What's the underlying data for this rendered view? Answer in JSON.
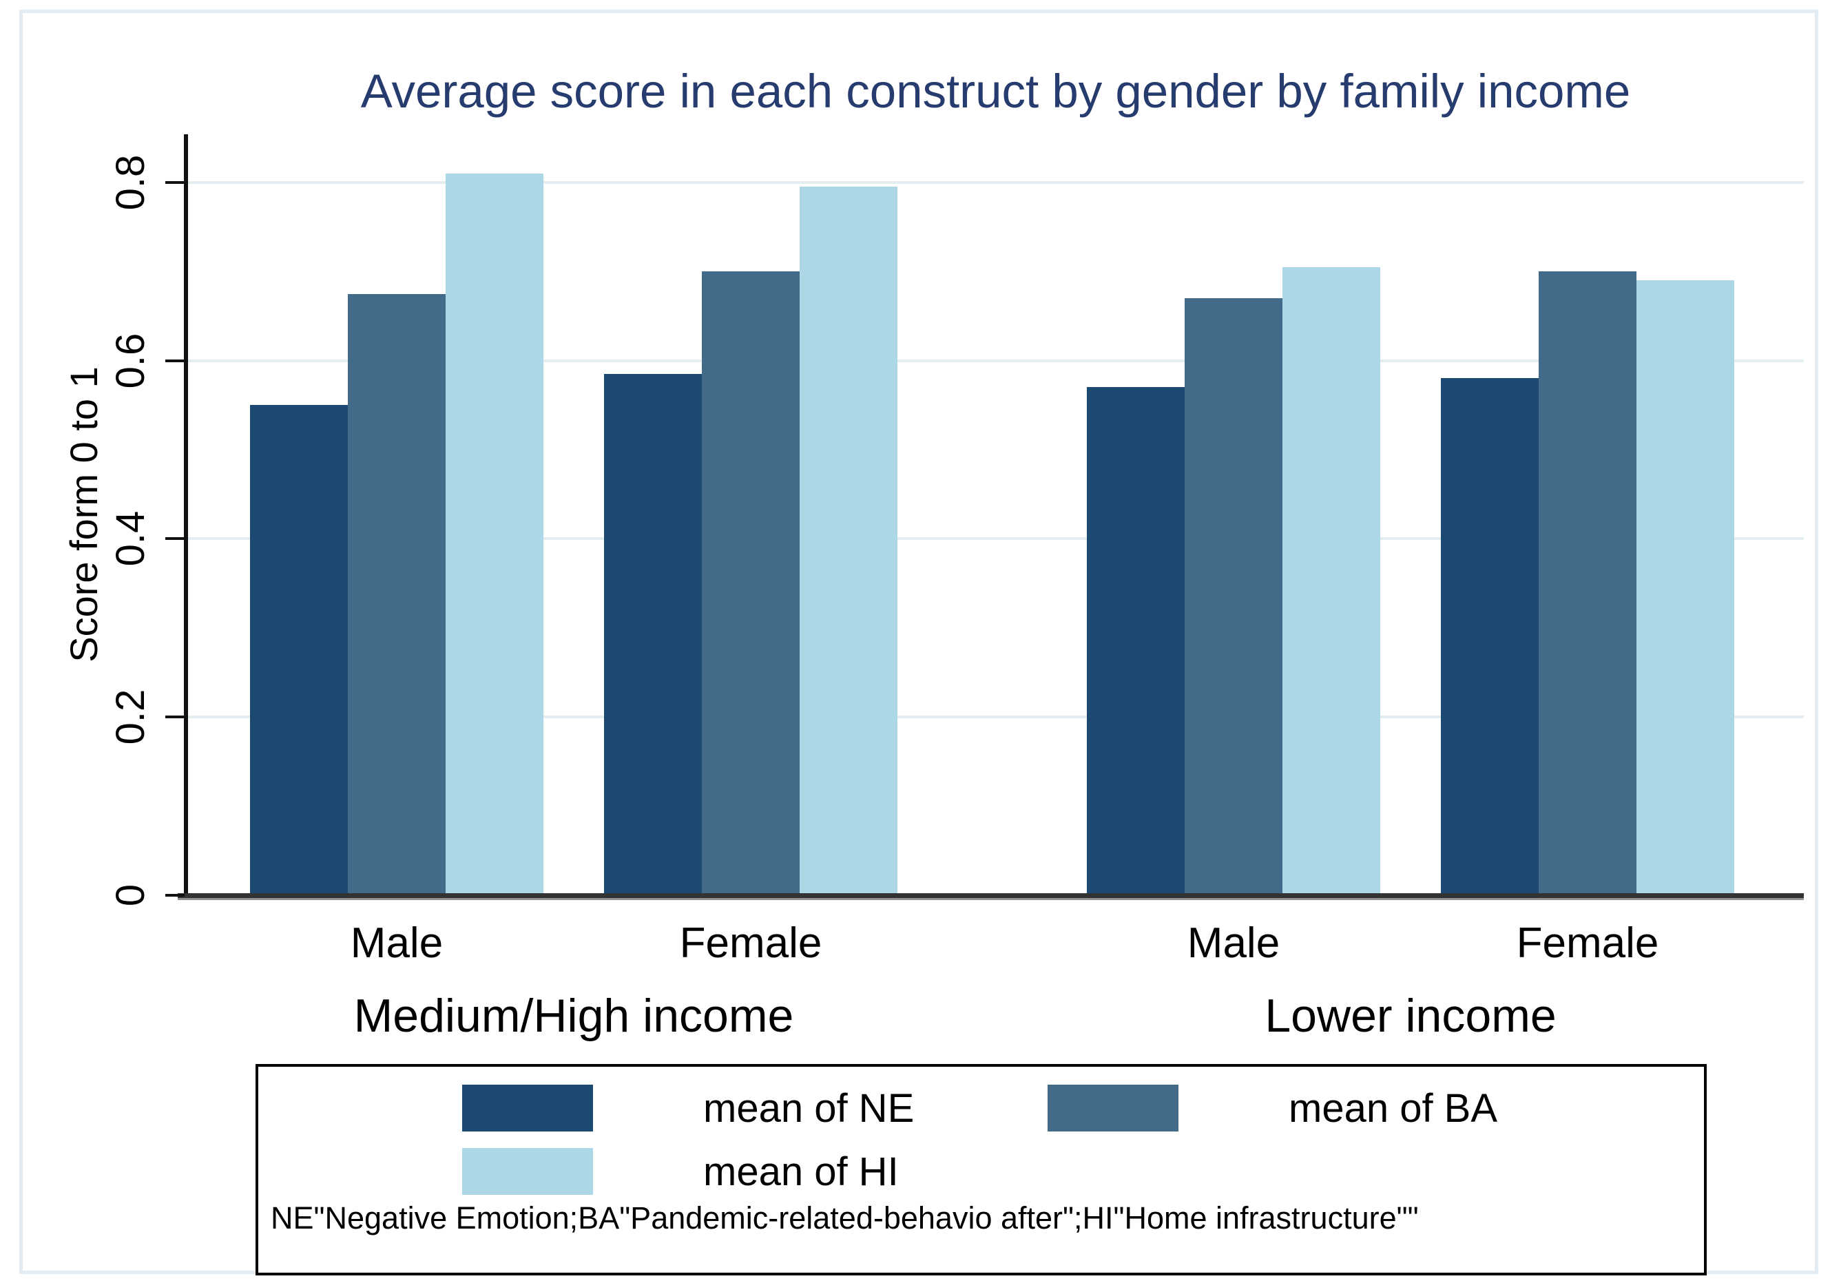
{
  "figure": {
    "background": "#ffffff",
    "frame_color": "#e2ecf2"
  },
  "chart_data": {
    "type": "bar",
    "title": "Average score in each construct by gender by family income",
    "title_color": "#263b6e",
    "xlabel": "",
    "ylabel": "Score form 0 to 1",
    "ylim": [
      0,
      0.85
    ],
    "grid": true,
    "legend_position": "bottom-box",
    "yticks": [
      {
        "value": 0,
        "label": "0"
      },
      {
        "value": 0.2,
        "label": "0.2"
      },
      {
        "value": 0.4,
        "label": "0.4"
      },
      {
        "value": 0.6,
        "label": "0.6"
      },
      {
        "value": 0.8,
        "label": "0.8"
      }
    ],
    "group_labels": [
      "Medium/High income",
      "Lower income"
    ],
    "categories": [
      "Male",
      "Female",
      "Male",
      "Female"
    ],
    "series": [
      {
        "name": "mean of NE",
        "color": "#1c4971",
        "values": [
          0.55,
          0.585,
          0.57,
          0.58
        ]
      },
      {
        "name": "mean of BA",
        "color": "#416b89",
        "values": [
          0.675,
          0.7,
          0.67,
          0.7
        ]
      },
      {
        "name": "mean of HI",
        "color": "#abd7e6",
        "values": [
          0.81,
          0.795,
          0.705,
          0.69
        ]
      }
    ],
    "note": "NE\"Negative Emotion;BA\"Pandemic-related-behavio after\";HI\"Home infrastructure\"\""
  }
}
